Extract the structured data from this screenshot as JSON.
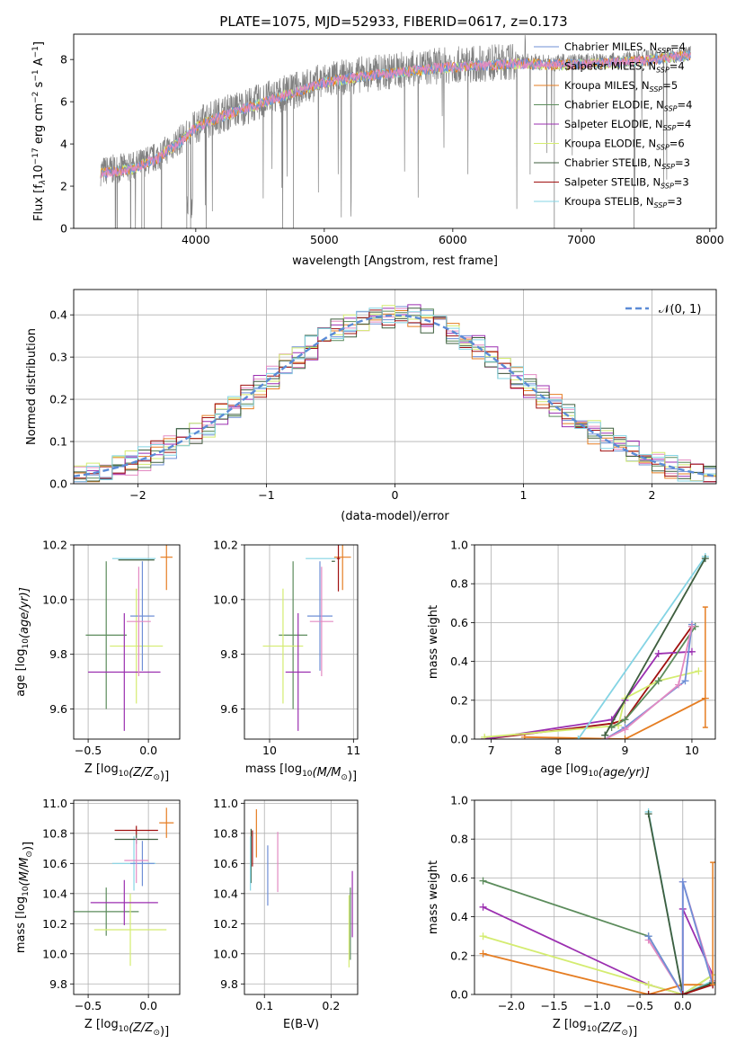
{
  "figure_title": "PLATE=1075, MJD=52933, FIBERID=0617, z=0.173",
  "colors": {
    "blue": "#6f8fd6",
    "pink": "#e38ac2",
    "orange": "#e57d22",
    "green": "#5c8c5c",
    "purple": "#9b2fb0",
    "lime": "#d4ec70",
    "dkgreen": "#3e5e3e",
    "darkred": "#a01010",
    "cyan": "#84d4e4",
    "grey": "#808080",
    "normal": "#5b8bd6"
  },
  "chart_data": [
    {
      "id": "spectrum",
      "type": "line",
      "xlabel": "wavelength [Angstrom, rest frame]",
      "ylabel_main": "Flux [f",
      "ylabel_sub": "λ",
      "ylabel_mid": "10",
      "ylabel_sup1": "−17",
      "ylabel_rest": " erg cm",
      "ylabel_sup2": "−2",
      "ylabel_rest2": " s",
      "ylabel_sup3": "−1",
      "ylabel_rest3": " A",
      "ylabel_sup4": "−1",
      "ylabel_end": "]",
      "xlim": [
        3050,
        8050
      ],
      "ylim": [
        0,
        9.2
      ],
      "xticks": [
        "4000",
        "5000",
        "6000",
        "7000",
        "8000"
      ],
      "xtick_values": [
        4000,
        5000,
        6000,
        7000,
        8000
      ],
      "yticks": [
        "0",
        "2",
        "4",
        "6",
        "8"
      ],
      "ytick_values": [
        0,
        2,
        4,
        6,
        8
      ],
      "data_color": "grey",
      "legend": [
        {
          "text": "Chabrier MILES, N",
          "sub": "SSP",
          "tail": "=4",
          "color": "blue"
        },
        {
          "text": "Salpeter MILES, N",
          "sub": "SSP",
          "tail": "=4",
          "color": "pink"
        },
        {
          "text": "Kroupa MILES, N",
          "sub": "SSP",
          "tail": "=5",
          "color": "orange"
        },
        {
          "text": "Chabrier ELODIE, N",
          "sub": "SSP",
          "tail": "=4",
          "color": "green"
        },
        {
          "text": "Salpeter ELODIE, N",
          "sub": "SSP",
          "tail": "=4",
          "color": "purple"
        },
        {
          "text": "Kroupa ELODIE, N",
          "sub": "SSP",
          "tail": "=6",
          "color": "lime"
        },
        {
          "text": "Chabrier STELIB, N",
          "sub": "SSP",
          "tail": "=3",
          "color": "dkgreen"
        },
        {
          "text": "Salpeter STELIB, N",
          "sub": "SSP",
          "tail": "=3",
          "color": "darkred"
        },
        {
          "text": "Kroupa STELIB, N",
          "sub": "SSP",
          "tail": "=3",
          "color": "cyan"
        }
      ],
      "continuum": {
        "x": [
          3250,
          3500,
          3700,
          3900,
          4000,
          4200,
          4500,
          4800,
          5000,
          5300,
          5600,
          5900,
          6200,
          6500,
          6800,
          7100,
          7400,
          7700,
          7850
        ],
        "y": [
          2.7,
          2.9,
          3.4,
          4.3,
          4.9,
          5.4,
          6.0,
          6.6,
          7.0,
          7.3,
          7.5,
          7.7,
          7.8,
          7.9,
          7.85,
          7.9,
          8.0,
          8.2,
          8.3
        ]
      }
    },
    {
      "id": "residuals",
      "type": "histogram",
      "xlabel": "(data-model)/error",
      "ylabel": "Normed distribution",
      "xlim": [
        -2.5,
        2.5
      ],
      "ylim": [
        0,
        0.46
      ],
      "xticks": [
        "−2",
        "−1",
        "0",
        "1",
        "2"
      ],
      "xtick_values": [
        -2,
        -1,
        0,
        1,
        2
      ],
      "yticks": [
        "0.0",
        "0.1",
        "0.2",
        "0.3",
        "0.4"
      ],
      "ytick_values": [
        0,
        0.1,
        0.2,
        0.3,
        0.4
      ],
      "bin_width": 0.1,
      "normal_label": "𝒩(0, 1)",
      "series_colors": [
        "blue",
        "pink",
        "orange",
        "green",
        "purple",
        "lime",
        "dkgreen",
        "darkred",
        "cyan"
      ]
    },
    {
      "id": "age-vs-z",
      "type": "errorbar",
      "xlabel": "Z [log",
      "xlabel_sub": "10",
      "xlabel_rest": "(Z/Z",
      "xlabel_sub2": "⊙",
      "xlabel_end": ")]",
      "ylabel": "age  [log",
      "ylabel_sub": "10",
      "ylabel_end": "(age/yr)]",
      "xlim": [
        -0.62,
        0.26
      ],
      "ylim": [
        9.49,
        10.2
      ],
      "xticks": [
        "−0.5",
        "0.0"
      ],
      "xtick_values": [
        -0.5,
        0.0
      ],
      "yticks": [
        "9.6",
        "9.8",
        "10.0",
        "10.2"
      ],
      "ytick_values": [
        9.6,
        9.8,
        10.0,
        10.2
      ],
      "points": [
        {
          "c": "orange",
          "x": 0.15,
          "xe": 0.05,
          "y": 10.155,
          "ye": 0.12
        },
        {
          "c": "cyan",
          "x": -0.12,
          "xe": 0.18,
          "y": 10.15,
          "ye": 0.0
        },
        {
          "c": "dkgreen",
          "x": -0.1,
          "xe": 0.15,
          "y": 10.145,
          "ye": 0.0
        },
        {
          "c": "green",
          "x": -0.35,
          "xe": 0.17,
          "y": 9.87,
          "ye": 0.27
        },
        {
          "c": "lime",
          "x": -0.1,
          "xe": 0.22,
          "y": 9.83,
          "ye": 0.21
        },
        {
          "c": "purple",
          "x": -0.2,
          "xe": 0.3,
          "y": 9.735,
          "ye": 0.215
        },
        {
          "c": "blue",
          "x": -0.05,
          "xe": 0.1,
          "y": 9.94,
          "ye": 0.2
        },
        {
          "c": "pink",
          "x": -0.08,
          "xe": 0.1,
          "y": 9.92,
          "ye": 0.2
        }
      ]
    },
    {
      "id": "age-vs-mass",
      "type": "errorbar",
      "xlabel": "mass [log",
      "xlabel_sub": "10",
      "xlabel_rest": "(M/M",
      "xlabel_sub2": "⊙",
      "xlabel_end": ")]",
      "xlim": [
        9.7,
        11.05
      ],
      "ylim": [
        9.49,
        10.2
      ],
      "xticks": [
        "10",
        "11"
      ],
      "xtick_values": [
        10,
        11
      ],
      "yticks": [
        "9.6",
        "9.8",
        "10.0",
        "10.2"
      ],
      "ytick_values": [
        9.6,
        9.8,
        10.0,
        10.2
      ],
      "points": [
        {
          "c": "orange",
          "x": 10.87,
          "xe": 0.1,
          "y": 10.155,
          "ye": 0.12
        },
        {
          "c": "darkred",
          "x": 10.82,
          "xe": 0.02,
          "y": 10.15,
          "ye": 0.12
        },
        {
          "c": "cyan",
          "x": 10.61,
          "xe": 0.18,
          "y": 10.15,
          "ye": 0.0
        },
        {
          "c": "dkgreen",
          "x": 10.76,
          "xe": 0.02,
          "y": 10.14,
          "ye": 0.0
        },
        {
          "c": "green",
          "x": 10.28,
          "xe": 0.17,
          "y": 9.87,
          "ye": 0.27
        },
        {
          "c": "lime",
          "x": 10.16,
          "xe": 0.24,
          "y": 9.83,
          "ye": 0.21
        },
        {
          "c": "purple",
          "x": 10.34,
          "xe": 0.15,
          "y": 9.735,
          "ye": 0.215
        },
        {
          "c": "blue",
          "x": 10.6,
          "xe": 0.15,
          "y": 9.94,
          "ye": 0.2
        },
        {
          "c": "pink",
          "x": 10.62,
          "xe": 0.14,
          "y": 9.92,
          "ye": 0.2
        }
      ]
    },
    {
      "id": "weight-vs-age",
      "type": "line",
      "xlabel": "age  [log",
      "xlabel_sub": "10",
      "xlabel_end": "(age/yr)]",
      "ylabel": "mass weight",
      "xlim": [
        6.75,
        10.35
      ],
      "ylim": [
        0,
        1.0
      ],
      "xticks": [
        "7",
        "8",
        "9",
        "10"
      ],
      "xtick_values": [
        7,
        8,
        9,
        10
      ],
      "yticks": [
        "0.0",
        "0.2",
        "0.4",
        "0.6",
        "0.8",
        "1.0"
      ],
      "ytick_values": [
        0,
        0.2,
        0.4,
        0.6,
        0.8,
        1.0
      ],
      "series": [
        {
          "c": "orange",
          "x": [
            7.5,
            9.0,
            10.2
          ],
          "y": [
            0.01,
            0.0,
            0.21
          ]
        },
        {
          "c": "darkred",
          "x": [
            6.9,
            8.8,
            9.0,
            10.0
          ],
          "y": [
            0.0,
            0.08,
            0.1,
            0.58
          ]
        },
        {
          "c": "purple",
          "x": [
            6.9,
            8.8,
            9.0,
            9.5,
            10.0
          ],
          "y": [
            0.0,
            0.1,
            0.2,
            0.44,
            0.45
          ]
        },
        {
          "c": "lime",
          "x": [
            6.9,
            8.9,
            9.0,
            9.5,
            10.1
          ],
          "y": [
            0.01,
            0.07,
            0.21,
            0.3,
            0.35
          ]
        },
        {
          "c": "green",
          "x": [
            8.8,
            9.0,
            9.5,
            10.05
          ],
          "y": [
            0.06,
            0.1,
            0.3,
            0.58
          ]
        },
        {
          "c": "blue",
          "x": [
            8.7,
            9.0,
            9.9,
            10.0
          ],
          "y": [
            0.0,
            0.06,
            0.3,
            0.59
          ]
        },
        {
          "c": "pink",
          "x": [
            8.7,
            9.0,
            9.8,
            10.0
          ],
          "y": [
            0.0,
            0.05,
            0.28,
            0.58
          ]
        },
        {
          "c": "cyan",
          "x": [
            8.3,
            10.2
          ],
          "y": [
            0.0,
            0.94
          ]
        },
        {
          "c": "dkgreen",
          "x": [
            8.7,
            10.2
          ],
          "y": [
            0.02,
            0.93
          ]
        }
      ],
      "vbars": [
        {
          "c": "orange",
          "x": 10.2,
          "y0": 0.06,
          "y1": 0.68
        }
      ]
    },
    {
      "id": "mass-vs-z",
      "type": "errorbar",
      "xlabel": "Z [log",
      "xlabel_sub": "10",
      "xlabel_rest": "(Z/Z",
      "xlabel_sub2": "⊙",
      "xlabel_end": ")]",
      "ylabel": "mass [log",
      "ylabel_sub": "10",
      "ylabel_end": "(M/M",
      "ylabel_sub2": "⊙",
      "ylabel_end2": ")]",
      "xlim": [
        -0.62,
        0.26
      ],
      "ylim": [
        9.73,
        11.02
      ],
      "xticks": [
        "−0.5",
        "0.0"
      ],
      "xtick_values": [
        -0.5,
        0.0
      ],
      "yticks": [
        "9.8",
        "10.0",
        "10.2",
        "10.4",
        "10.6",
        "10.8",
        "11.0"
      ],
      "ytick_values": [
        9.8,
        10.0,
        10.2,
        10.4,
        10.6,
        10.8,
        11.0
      ],
      "points": [
        {
          "c": "orange",
          "x": 0.15,
          "xe": 0.06,
          "y": 10.87,
          "ye": 0.1
        },
        {
          "c": "darkred",
          "x": -0.1,
          "xe": 0.18,
          "y": 10.82,
          "ye": 0.03
        },
        {
          "c": "cyan",
          "x": -0.12,
          "xe": 0.18,
          "y": 10.6,
          "ye": 0.18
        },
        {
          "c": "dkgreen",
          "x": -0.1,
          "xe": 0.18,
          "y": 10.76,
          "ye": 0.03
        },
        {
          "c": "green",
          "x": -0.35,
          "xe": 0.27,
          "y": 10.28,
          "ye": 0.16
        },
        {
          "c": "lime",
          "x": -0.15,
          "xe": 0.3,
          "y": 10.16,
          "ye": 0.24
        },
        {
          "c": "purple",
          "x": -0.2,
          "xe": 0.28,
          "y": 10.34,
          "ye": 0.15
        },
        {
          "c": "blue",
          "x": -0.05,
          "xe": 0.1,
          "y": 10.6,
          "ye": 0.15
        },
        {
          "c": "pink",
          "x": -0.1,
          "xe": 0.1,
          "y": 10.62,
          "ye": 0.15
        }
      ]
    },
    {
      "id": "mass-vs-ebv",
      "type": "errorbar",
      "xlabel": "E(B-V)",
      "xlim": [
        0.07,
        0.24
      ],
      "ylim": [
        9.73,
        11.02
      ],
      "xticks": [
        "0.1",
        "0.2"
      ],
      "xtick_values": [
        0.1,
        0.2
      ],
      "yticks": [
        "9.8",
        "10.0",
        "10.2",
        "10.4",
        "10.6",
        "10.8",
        "11.0"
      ],
      "ytick_values": [
        9.8,
        10.0,
        10.2,
        10.4,
        10.6,
        10.8,
        11.0
      ],
      "points": [
        {
          "c": "orange",
          "x": 0.088,
          "xe": 0,
          "y": 10.8,
          "ye": 0.16
        },
        {
          "c": "darkred",
          "x": 0.082,
          "xe": 0,
          "y": 10.7,
          "ye": 0.12
        },
        {
          "c": "dkgreen",
          "x": 0.08,
          "xe": 0,
          "y": 10.65,
          "ye": 0.18
        },
        {
          "c": "cyan",
          "x": 0.079,
          "xe": 0,
          "y": 10.6,
          "ye": 0.18
        },
        {
          "c": "blue",
          "x": 0.105,
          "xe": 0,
          "y": 10.52,
          "ye": 0.2
        },
        {
          "c": "pink",
          "x": 0.12,
          "xe": 0,
          "y": 10.61,
          "ye": 0.2
        },
        {
          "c": "purple",
          "x": 0.232,
          "xe": 0,
          "y": 10.33,
          "ye": 0.22
        },
        {
          "c": "green",
          "x": 0.229,
          "xe": 0,
          "y": 10.2,
          "ye": 0.24
        },
        {
          "c": "lime",
          "x": 0.227,
          "xe": 0,
          "y": 10.15,
          "ye": 0.24
        }
      ]
    },
    {
      "id": "weight-vs-z",
      "type": "line",
      "xlabel": "Z [log",
      "xlabel_sub": "10",
      "xlabel_rest": "(Z/Z",
      "xlabel_sub2": "⊙",
      "xlabel_end": ")]",
      "ylabel": "mass weight",
      "xlim": [
        -2.43,
        0.38
      ],
      "ylim": [
        0,
        1.0
      ],
      "xticks": [
        "−2.0",
        "−1.5",
        "−1.0",
        "−0.5",
        "0.0"
      ],
      "xtick_values": [
        -2.0,
        -1.5,
        -1.0,
        -0.5,
        0.0
      ],
      "yticks": [
        "0.0",
        "0.2",
        "0.4",
        "0.6",
        "0.8",
        "1.0"
      ],
      "ytick_values": [
        0,
        0.2,
        0.4,
        0.6,
        0.8,
        1.0
      ],
      "series": [
        {
          "c": "green",
          "x": [
            -2.33,
            -0.4,
            0.0,
            0.35
          ],
          "y": [
            0.585,
            0.3,
            0.0,
            0.1
          ]
        },
        {
          "c": "purple",
          "x": [
            -2.33,
            -0.4,
            0.0,
            0.0,
            0.35
          ],
          "y": [
            0.45,
            0.05,
            0.0,
            0.44,
            0.1
          ]
        },
        {
          "c": "lime",
          "x": [
            -2.33,
            -0.4,
            0.0,
            0.35
          ],
          "y": [
            0.3,
            0.05,
            0.0,
            0.1
          ]
        },
        {
          "c": "orange",
          "x": [
            -2.33,
            -0.4,
            0.0,
            0.35
          ],
          "y": [
            0.21,
            0.0,
            0.05,
            0.05
          ]
        },
        {
          "c": "cyan",
          "x": [
            -0.4,
            0.0,
            0.35
          ],
          "y": [
            0.94,
            0.0,
            0.07
          ]
        },
        {
          "c": "dkgreen",
          "x": [
            -0.4,
            0.0,
            0.35
          ],
          "y": [
            0.93,
            0.0,
            0.06
          ]
        },
        {
          "c": "pink",
          "x": [
            -0.4,
            0.0,
            0.0,
            0.35
          ],
          "y": [
            0.28,
            0.0,
            0.58,
            0.07
          ]
        },
        {
          "c": "blue",
          "x": [
            -0.4,
            0.0,
            0.0,
            0.35
          ],
          "y": [
            0.3,
            0.0,
            0.58,
            0.05
          ]
        },
        {
          "c": "darkred",
          "x": [
            -0.4,
            0.0,
            0.35
          ],
          "y": [
            0.0,
            0.0,
            0.05
          ]
        }
      ],
      "vbars": [
        {
          "c": "orange",
          "x": 0.35,
          "y0": 0.05,
          "y1": 0.68
        }
      ]
    }
  ]
}
